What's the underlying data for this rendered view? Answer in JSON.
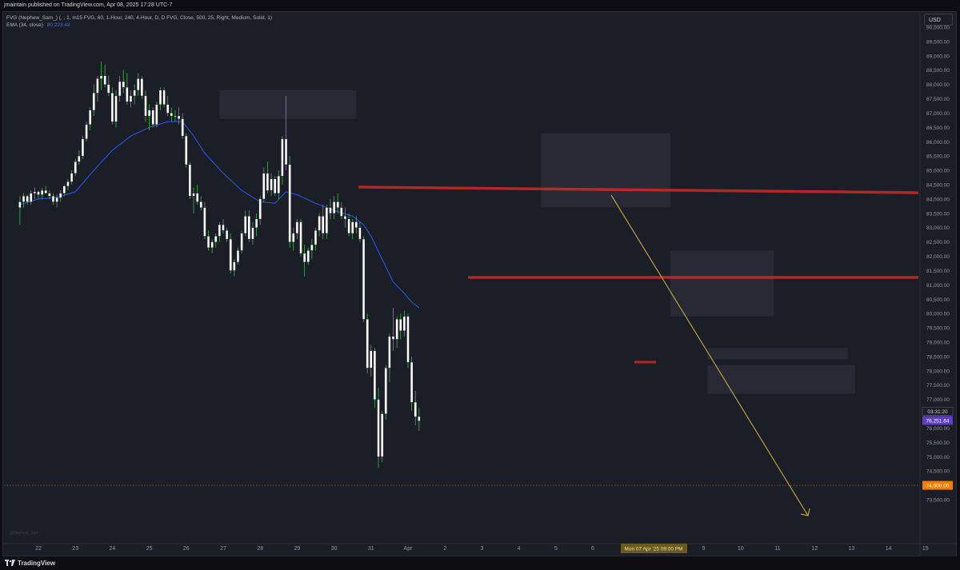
{
  "header": {
    "publisher": "jmaintain published on TradingView.com, Apr 08, 2025 17:28 UTC-7"
  },
  "legend": {
    "indicator_line": "FVG (Nephew_Sam_) (, , 1, m15 FVG, 60, 1-Hour, 240, 4-Hour, D, D FVG, Close, 500, 25, Right, Medium, Solid, 1)",
    "ema_label": "EMA (34, close)",
    "ema_value": "80,223.48"
  },
  "currency": "USD",
  "footer": {
    "brand": "TradingView",
    "watermark": "@Nephew_Sam"
  },
  "colors": {
    "background": "#1b1d27",
    "bull_candle": "#ffffff",
    "bear_candle": "#ffffff",
    "wick": "#4caf50",
    "ema": "#2962ff",
    "resistance": "#c62828",
    "projection": "#b5a045",
    "target": "#f57c00",
    "current": "#5c3fc0"
  },
  "chart_data": {
    "type": "candlestick",
    "timeframe": "1-Hour",
    "ylim": [
      73000,
      90500
    ],
    "y_ticks": [
      73500,
      74000,
      74500,
      75000,
      75500,
      76000,
      76500,
      77000,
      77500,
      78000,
      78500,
      79000,
      79500,
      80000,
      80500,
      81000,
      81500,
      82000,
      82500,
      83000,
      83500,
      84000,
      84500,
      85000,
      85500,
      86000,
      86500,
      87000,
      87500,
      88000,
      88500,
      89000,
      89500,
      90000
    ],
    "y_tick_labels": [
      "73,500.00",
      "74,000.00",
      "74,500.00",
      "75,000.00",
      "75,500.00",
      "76,000.00",
      "76,500.00",
      "77,000.00",
      "77,500.00",
      "78,000.00",
      "78,500.00",
      "79,000.00",
      "79,500.00",
      "80,000.00",
      "80,500.00",
      "81,000.00",
      "81,500.00",
      "82,000.00",
      "82,500.00",
      "83,000.00",
      "83,500.00",
      "84,000.00",
      "84,500.00",
      "85,000.00",
      "85,500.00",
      "86,000.00",
      "86,500.00",
      "87,000.00",
      "87,500.00",
      "88,000.00",
      "88,500.00",
      "89,000.00",
      "89,500.00",
      "90,000.00"
    ],
    "x_labels": [
      "22",
      "23",
      "24",
      "25",
      "26",
      "27",
      "28",
      "29",
      "30",
      "31",
      "Apr",
      "2",
      "3",
      "4",
      "5",
      "6",
      "7",
      "8",
      "9",
      "10",
      "11",
      "12",
      "13",
      "14",
      "15"
    ],
    "x_highlight": "Mon 07 Apr '25  09:00 PM",
    "current_price": "76,251.64",
    "countdown": "03:31:20",
    "target_price": "74,000.00",
    "target_value": 74000,
    "resistance_levels": [
      84650,
      81750
    ],
    "fvg_zones": [
      {
        "day_start": 4.9,
        "day_end": 8.6,
        "lo": 86800,
        "hi": 87800
      },
      {
        "day_start": 13.6,
        "day_end": 17.1,
        "lo": 83700,
        "hi": 86300
      },
      {
        "day_start": 17.1,
        "day_end": 19.9,
        "lo": 79900,
        "hi": 82200
      },
      {
        "day_start": 18.1,
        "day_end": 21.9,
        "lo": 78400,
        "hi": 78800
      },
      {
        "day_start": 18.1,
        "day_end": 22.1,
        "lo": 77200,
        "hi": 78200
      }
    ],
    "projection": {
      "from_day": 16.5,
      "from_price": 84500,
      "to_day": 21.2,
      "to_price": 73900
    },
    "candles": [
      [
        -0.5,
        83700,
        84100,
        83100,
        83900
      ],
      [
        -0.4,
        83900,
        84200,
        83700,
        84100
      ],
      [
        -0.3,
        84100,
        84150,
        83800,
        83900
      ],
      [
        -0.2,
        83900,
        84300,
        83800,
        84200
      ],
      [
        -0.1,
        84200,
        84400,
        84000,
        84250
      ],
      [
        0.0,
        84250,
        84300,
        84000,
        84150
      ],
      [
        0.1,
        84150,
        84400,
        84000,
        84300
      ],
      [
        0.2,
        84300,
        84450,
        84200,
        84200
      ],
      [
        0.3,
        84200,
        84300,
        84000,
        84100
      ],
      [
        0.4,
        84100,
        84200,
        83800,
        83900
      ],
      [
        0.5,
        83900,
        84150,
        83700,
        84050
      ],
      [
        0.6,
        84050,
        84300,
        83900,
        84200
      ],
      [
        0.7,
        84200,
        84500,
        84100,
        84450
      ],
      [
        0.8,
        84450,
        84700,
        84300,
        84600
      ],
      [
        0.9,
        84600,
        85000,
        84500,
        84900
      ],
      [
        1.0,
        84900,
        85400,
        84800,
        85300
      ],
      [
        1.1,
        85300,
        85700,
        85200,
        85500
      ],
      [
        1.2,
        85500,
        86200,
        85400,
        86100
      ],
      [
        1.3,
        86100,
        86700,
        86000,
        86600
      ],
      [
        1.4,
        86600,
        87200,
        86400,
        87100
      ],
      [
        1.5,
        87100,
        88000,
        86900,
        87700
      ],
      [
        1.6,
        87700,
        88300,
        87400,
        88200
      ],
      [
        1.7,
        88200,
        88800,
        87800,
        88300
      ],
      [
        1.8,
        88300,
        88700,
        87900,
        88000
      ],
      [
        1.9,
        88000,
        88300,
        87600,
        87700
      ],
      [
        2.0,
        87700,
        87900,
        86600,
        86700
      ],
      [
        2.1,
        86700,
        87800,
        86500,
        87600
      ],
      [
        2.2,
        87600,
        88300,
        87400,
        88100
      ],
      [
        2.3,
        88100,
        88500,
        87700,
        87900
      ],
      [
        2.4,
        87900,
        88400,
        87300,
        87400
      ],
      [
        2.5,
        87400,
        87800,
        87200,
        87600
      ],
      [
        2.6,
        87600,
        88000,
        87300,
        87800
      ],
      [
        2.7,
        87800,
        88400,
        87600,
        88200
      ],
      [
        2.8,
        88200,
        88300,
        87500,
        87600
      ],
      [
        2.9,
        87600,
        87800,
        86700,
        86900
      ],
      [
        3.0,
        86900,
        87300,
        86400,
        87100
      ],
      [
        3.1,
        87100,
        87200,
        86500,
        86600
      ],
      [
        3.2,
        86600,
        87400,
        86500,
        87300
      ],
      [
        3.3,
        87300,
        87900,
        87100,
        87800
      ],
      [
        3.4,
        87800,
        87900,
        87200,
        87300
      ],
      [
        3.5,
        87300,
        87600,
        86900,
        87000
      ],
      [
        3.6,
        87000,
        87200,
        86700,
        86900
      ],
      [
        3.7,
        86900,
        87100,
        86700,
        86900
      ],
      [
        3.8,
        86900,
        87200,
        86600,
        86800
      ],
      [
        3.9,
        86800,
        87000,
        86100,
        86200
      ],
      [
        4.0,
        86200,
        86300,
        85100,
        85200
      ],
      [
        4.1,
        85200,
        85300,
        84000,
        84100
      ],
      [
        4.2,
        84100,
        84400,
        83500,
        84200
      ],
      [
        4.3,
        84200,
        84500,
        83800,
        83900
      ],
      [
        4.4,
        83900,
        84100,
        83600,
        83700
      ],
      [
        4.5,
        83700,
        83900,
        82600,
        82700
      ],
      [
        4.6,
        82700,
        82900,
        82200,
        82300
      ],
      [
        4.7,
        82300,
        82600,
        82100,
        82500
      ],
      [
        4.8,
        82500,
        82800,
        82300,
        82700
      ],
      [
        4.9,
        82700,
        83200,
        82500,
        83100
      ],
      [
        5.0,
        83100,
        83300,
        82800,
        82900
      ],
      [
        5.1,
        82900,
        83000,
        82500,
        82600
      ],
      [
        5.2,
        82600,
        82800,
        81400,
        81500
      ],
      [
        5.3,
        81500,
        81900,
        81300,
        81800
      ],
      [
        5.4,
        81800,
        82300,
        81700,
        82200
      ],
      [
        5.5,
        82200,
        82900,
        82100,
        82800
      ],
      [
        5.6,
        82800,
        83600,
        82700,
        83400
      ],
      [
        5.7,
        83400,
        83600,
        82500,
        82600
      ],
      [
        5.8,
        82600,
        83200,
        82400,
        83000
      ],
      [
        5.9,
        83000,
        83500,
        82700,
        83300
      ],
      [
        6.0,
        83300,
        84100,
        83100,
        84000
      ],
      [
        6.1,
        84000,
        85100,
        83900,
        84900
      ],
      [
        6.2,
        84900,
        85300,
        84200,
        84300
      ],
      [
        6.3,
        84300,
        84900,
        84100,
        84700
      ],
      [
        6.4,
        84700,
        84800,
        84100,
        84200
      ],
      [
        6.5,
        84200,
        85000,
        84000,
        84800
      ],
      [
        6.6,
        84800,
        86200,
        84500,
        86100
      ],
      [
        6.7,
        86100,
        87600,
        85000,
        85200
      ],
      [
        6.8,
        85200,
        85500,
        82300,
        82500
      ],
      [
        6.9,
        82500,
        83000,
        82200,
        82800
      ],
      [
        7.0,
        82800,
        83300,
        82600,
        83200
      ],
      [
        7.1,
        83200,
        83300,
        82000,
        82100
      ],
      [
        7.2,
        82100,
        82400,
        81300,
        81800
      ],
      [
        7.3,
        81800,
        82300,
        81700,
        82200
      ],
      [
        7.4,
        82200,
        82600,
        81900,
        82400
      ],
      [
        7.5,
        82400,
        83000,
        82200,
        82900
      ],
      [
        7.6,
        82900,
        83500,
        82700,
        83400
      ],
      [
        7.7,
        83400,
        83800,
        82600,
        82800
      ],
      [
        7.8,
        82800,
        83800,
        82600,
        83700
      ],
      [
        7.9,
        83700,
        84000,
        83300,
        83500
      ],
      [
        8.0,
        83500,
        84100,
        83300,
        83900
      ],
      [
        8.1,
        83900,
        84200,
        83500,
        83700
      ],
      [
        8.2,
        83700,
        83900,
        83300,
        83400
      ],
      [
        8.3,
        83400,
        83700,
        83000,
        83300
      ],
      [
        8.4,
        83300,
        83500,
        82700,
        82800
      ],
      [
        8.5,
        82800,
        83300,
        82600,
        83200
      ],
      [
        8.6,
        83200,
        83400,
        82800,
        83000
      ],
      [
        8.7,
        83000,
        83200,
        82500,
        82600
      ],
      [
        8.8,
        82600,
        82700,
        79700,
        79800
      ],
      [
        8.9,
        79800,
        80000,
        77900,
        78100
      ],
      [
        9.0,
        78100,
        78900,
        77800,
        78700
      ],
      [
        9.1,
        78700,
        78800,
        76700,
        77000
      ],
      [
        9.2,
        77000,
        77400,
        74600,
        75000
      ],
      [
        9.3,
        75000,
        76600,
        74800,
        76500
      ],
      [
        9.4,
        76500,
        78200,
        76300,
        78100
      ],
      [
        9.5,
        78100,
        79300,
        77600,
        79200
      ],
      [
        9.6,
        79200,
        80200,
        78700,
        79100
      ],
      [
        9.7,
        79100,
        79900,
        78800,
        79800
      ],
      [
        9.8,
        79800,
        80000,
        79100,
        79400
      ],
      [
        9.9,
        79400,
        80100,
        79200,
        79900
      ],
      [
        10.0,
        79900,
        80000,
        78100,
        78300
      ],
      [
        10.1,
        78300,
        78500,
        76600,
        76900
      ],
      [
        10.2,
        76900,
        77300,
        76100,
        76400
      ],
      [
        10.3,
        76400,
        76700,
        75900,
        76250
      ]
    ],
    "ema": [
      [
        -0.5,
        83800
      ],
      [
        0.0,
        84000
      ],
      [
        0.5,
        84050
      ],
      [
        1.0,
        84250
      ],
      [
        1.5,
        85000
      ],
      [
        2.0,
        85700
      ],
      [
        2.5,
        86200
      ],
      [
        3.0,
        86500
      ],
      [
        3.5,
        86700
      ],
      [
        3.9,
        86700
      ],
      [
        4.2,
        86200
      ],
      [
        4.5,
        85600
      ],
      [
        5.0,
        84900
      ],
      [
        5.5,
        84300
      ],
      [
        6.0,
        83900
      ],
      [
        6.4,
        83850
      ],
      [
        6.7,
        84250
      ],
      [
        7.0,
        84150
      ],
      [
        7.5,
        83850
      ],
      [
        8.0,
        83600
      ],
      [
        8.5,
        83400
      ],
      [
        8.8,
        83100
      ],
      [
        9.0,
        82700
      ],
      [
        9.3,
        81900
      ],
      [
        9.6,
        81100
      ],
      [
        9.9,
        80700
      ],
      [
        10.1,
        80400
      ],
      [
        10.3,
        80200
      ]
    ]
  }
}
